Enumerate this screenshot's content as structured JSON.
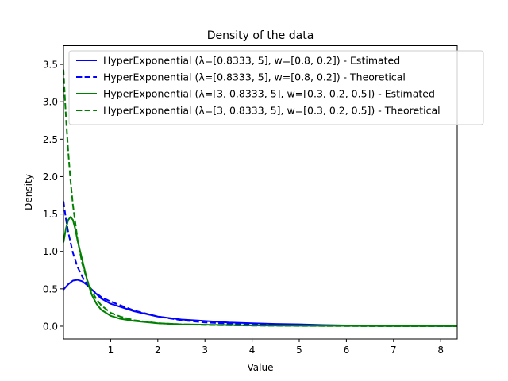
{
  "chart_data": {
    "type": "line",
    "title": "Density of the data",
    "xlabel": "Value",
    "ylabel": "Density",
    "xlim": [
      0,
      8.35
    ],
    "ylim": [
      -0.17,
      3.75
    ],
    "xticks": [
      1,
      2,
      3,
      4,
      5,
      6,
      7,
      8
    ],
    "yticks": [
      0.0,
      0.5,
      1.0,
      1.5,
      2.0,
      2.5,
      3.0,
      3.5
    ],
    "grid": false,
    "legend_position": "top-right",
    "series": [
      {
        "name": "HyperExponential (λ=[0.8333, 5], w=[0.8, 0.2]) - Estimated",
        "color": "#0000ff",
        "linestyle": "solid",
        "x": [
          0,
          0.1,
          0.2,
          0.3,
          0.4,
          0.5,
          0.6,
          0.7,
          0.8,
          1.0,
          1.2,
          1.5,
          2.0,
          2.5,
          3.0,
          3.5,
          4.0,
          4.5,
          5.0,
          5.5,
          6.0,
          7.0,
          8.0,
          8.35
        ],
        "y": [
          0.49,
          0.56,
          0.61,
          0.62,
          0.6,
          0.55,
          0.49,
          0.43,
          0.37,
          0.3,
          0.26,
          0.2,
          0.13,
          0.09,
          0.07,
          0.05,
          0.04,
          0.03,
          0.025,
          0.015,
          0.01,
          0.007,
          0.004,
          0.003
        ]
      },
      {
        "name": "HyperExponential (λ=[0.8333, 5], w=[0.8, 0.2]) - Theoretical",
        "color": "#0000ff",
        "linestyle": "dashed",
        "x": [
          0,
          0.05,
          0.1,
          0.2,
          0.3,
          0.4,
          0.5,
          0.6,
          0.8,
          1.0,
          1.5,
          2.0,
          2.5,
          3.0,
          3.5,
          4.0,
          5.0,
          6.0,
          7.0,
          8.0,
          8.35
        ],
        "y": [
          1.67,
          1.44,
          1.26,
          0.98,
          0.79,
          0.66,
          0.56,
          0.49,
          0.39,
          0.33,
          0.21,
          0.13,
          0.08,
          0.05,
          0.035,
          0.02,
          0.01,
          0.004,
          0.002,
          0.001,
          0.001
        ]
      },
      {
        "name": "HyperExponential (λ=[3, 0.8333, 5], w=[0.3, 0.2, 0.5]) - Estimated",
        "color": "#008000",
        "linestyle": "solid",
        "x": [
          0,
          0.05,
          0.1,
          0.15,
          0.2,
          0.25,
          0.3,
          0.4,
          0.5,
          0.6,
          0.7,
          0.8,
          1.0,
          1.2,
          1.5,
          2.0,
          2.5,
          3.0,
          3.5,
          4.0,
          5.0,
          6.0,
          7.0,
          8.0,
          8.35
        ],
        "y": [
          1.12,
          1.3,
          1.42,
          1.46,
          1.42,
          1.3,
          1.14,
          0.88,
          0.62,
          0.42,
          0.3,
          0.22,
          0.14,
          0.1,
          0.07,
          0.04,
          0.025,
          0.02,
          0.015,
          0.01,
          0.007,
          0.005,
          0.003,
          0.002,
          0.002
        ]
      },
      {
        "name": "HyperExponential (λ=[3, 0.8333, 5], w=[0.3, 0.2, 0.5]) - Theoretical",
        "color": "#008000",
        "linestyle": "dashed",
        "x": [
          0,
          0.03,
          0.06,
          0.1,
          0.15,
          0.2,
          0.3,
          0.4,
          0.5,
          0.6,
          0.7,
          0.8,
          1.0,
          1.2,
          1.5,
          2.0,
          2.5,
          3.0,
          4.0,
          5.0,
          6.0,
          7.0,
          8.0,
          8.35
        ],
        "y": [
          3.43,
          3.05,
          2.72,
          2.34,
          1.94,
          1.62,
          1.15,
          0.83,
          0.62,
          0.47,
          0.36,
          0.28,
          0.18,
          0.13,
          0.08,
          0.04,
          0.025,
          0.017,
          0.008,
          0.004,
          0.002,
          0.001,
          0.0005,
          0.0004
        ]
      }
    ]
  }
}
